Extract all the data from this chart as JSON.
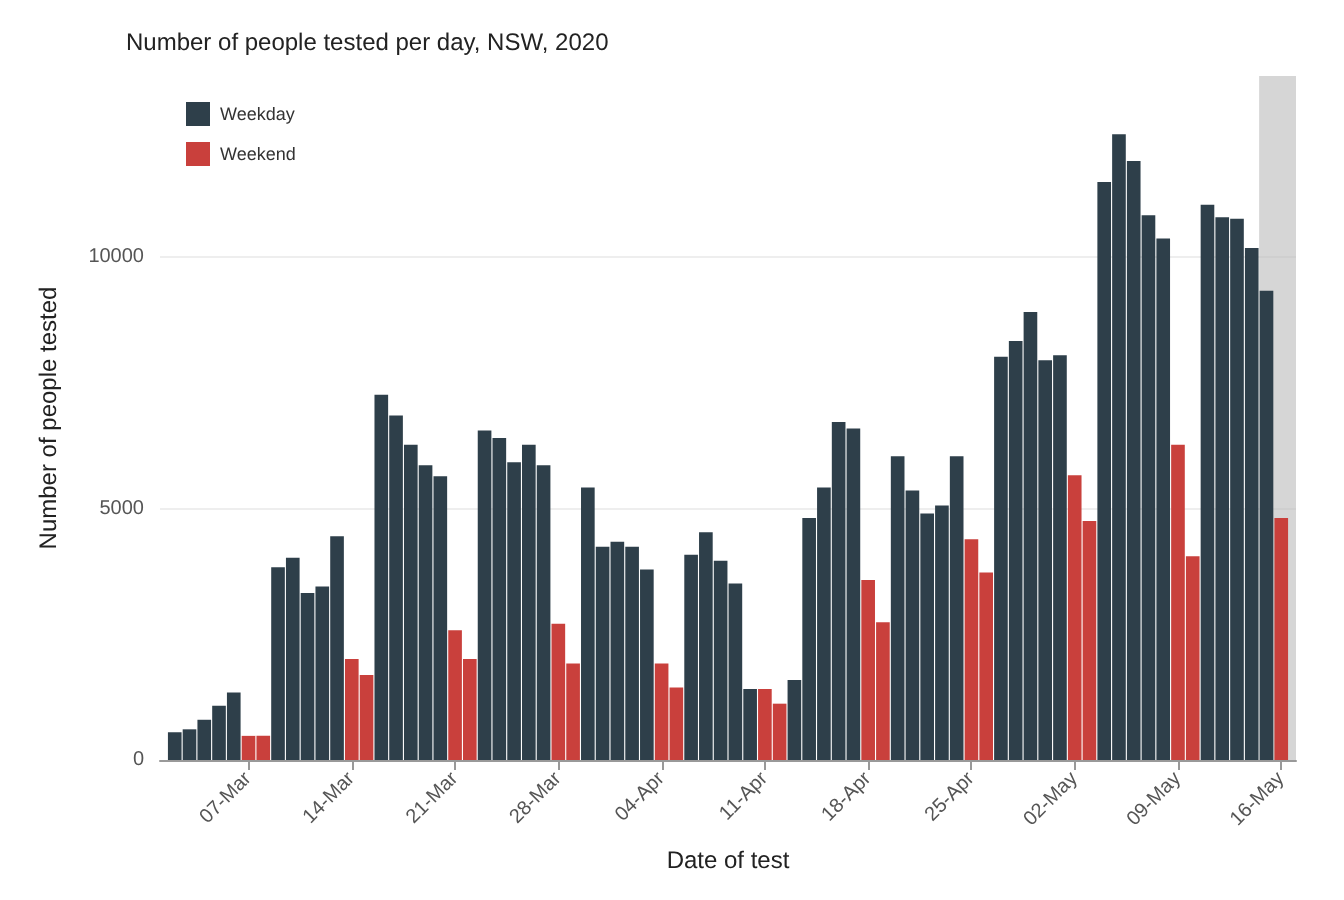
{
  "chart_data": {
    "type": "bar",
    "title": "Number of people tested per day, NSW, 2020",
    "xlabel": "Date of test",
    "ylabel": "Number of people tested",
    "x": [
      "2020-03-02",
      "2020-03-03",
      "2020-03-04",
      "2020-03-05",
      "2020-03-06",
      "2020-03-07",
      "2020-03-08",
      "2020-03-09",
      "2020-03-10",
      "2020-03-11",
      "2020-03-12",
      "2020-03-13",
      "2020-03-14",
      "2020-03-15",
      "2020-03-16",
      "2020-03-17",
      "2020-03-18",
      "2020-03-19",
      "2020-03-20",
      "2020-03-21",
      "2020-03-22",
      "2020-03-23",
      "2020-03-24",
      "2020-03-25",
      "2020-03-26",
      "2020-03-27",
      "2020-03-28",
      "2020-03-29",
      "2020-03-30",
      "2020-03-31",
      "2020-04-01",
      "2020-04-02",
      "2020-04-03",
      "2020-04-04",
      "2020-04-05",
      "2020-04-06",
      "2020-04-07",
      "2020-04-08",
      "2020-04-09",
      "2020-04-10",
      "2020-04-11",
      "2020-04-12",
      "2020-04-13",
      "2020-04-14",
      "2020-04-15",
      "2020-04-16",
      "2020-04-17",
      "2020-04-18",
      "2020-04-19",
      "2020-04-20",
      "2020-04-21",
      "2020-04-22",
      "2020-04-23",
      "2020-04-24",
      "2020-04-25",
      "2020-04-26",
      "2020-04-27",
      "2020-04-28",
      "2020-04-29",
      "2020-04-30",
      "2020-05-01",
      "2020-05-02",
      "2020-05-03",
      "2020-05-04",
      "2020-05-05",
      "2020-05-06",
      "2020-05-07",
      "2020-05-08",
      "2020-05-09",
      "2020-05-10",
      "2020-05-11",
      "2020-05-12",
      "2020-05-13",
      "2020-05-14",
      "2020-05-15",
      "2020-05-16"
    ],
    "series": [
      {
        "name": "Weekday",
        "color": "#2e3f4a",
        "values": [
          550,
          610,
          800,
          1080,
          1340,
          null,
          null,
          3830,
          4020,
          3320,
          3450,
          4450,
          null,
          null,
          7260,
          6850,
          6270,
          5860,
          5640,
          null,
          null,
          6550,
          6400,
          5920,
          6270,
          5860,
          null,
          null,
          5420,
          4240,
          4340,
          4240,
          3790,
          null,
          null,
          4080,
          4530,
          3960,
          3510,
          1410,
          null,
          null,
          1590,
          4810,
          5420,
          6720,
          6590,
          null,
          null,
          6040,
          5360,
          4900,
          5060,
          6040,
          null,
          null,
          8020,
          8330,
          8910,
          7950,
          8050,
          null,
          null,
          11490,
          12440,
          11910,
          10830,
          10370,
          null,
          null,
          11040,
          10790,
          10760,
          10180,
          9330,
          null
        ]
      },
      {
        "name": "Weekend",
        "color": "#c9403c",
        "values": [
          null,
          null,
          null,
          null,
          null,
          480,
          480,
          null,
          null,
          null,
          null,
          null,
          2010,
          1690,
          null,
          null,
          null,
          null,
          null,
          2580,
          2010,
          null,
          null,
          null,
          null,
          null,
          2710,
          1920,
          null,
          null,
          null,
          null,
          null,
          1920,
          1440,
          null,
          null,
          null,
          null,
          null,
          1410,
          1120,
          null,
          null,
          null,
          null,
          null,
          3580,
          2740,
          null,
          null,
          null,
          null,
          null,
          4390,
          3730,
          null,
          null,
          null,
          null,
          null,
          5660,
          4750,
          null,
          null,
          null,
          null,
          null,
          6270,
          4050,
          null,
          null,
          null,
          null,
          null,
          4810
        ]
      }
    ],
    "xlim": [
      "2020-03-01",
      "2020-05-17"
    ],
    "xticks": [
      {
        "value": "2020-03-07",
        "label": "07-Mar"
      },
      {
        "value": "2020-03-14",
        "label": "14-Mar"
      },
      {
        "value": "2020-03-21",
        "label": "21-Mar"
      },
      {
        "value": "2020-03-28",
        "label": "28-Mar"
      },
      {
        "value": "2020-04-04",
        "label": "04-Apr"
      },
      {
        "value": "2020-04-11",
        "label": "11-Apr"
      },
      {
        "value": "2020-04-18",
        "label": "18-Apr"
      },
      {
        "value": "2020-04-25",
        "label": "25-Apr"
      },
      {
        "value": "2020-05-02",
        "label": "02-May"
      },
      {
        "value": "2020-05-09",
        "label": "09-May"
      },
      {
        "value": "2020-05-16",
        "label": "16-May"
      }
    ],
    "ylim": [
      0,
      13600
    ],
    "yticks": [
      0,
      5000,
      10000
    ],
    "bands": [
      {
        "axis": "x",
        "from": "2020-05-14T12:00",
        "to": "2020-05-17",
        "color": "#bbbbbb"
      }
    ],
    "grid": "y",
    "legend": "top left"
  }
}
